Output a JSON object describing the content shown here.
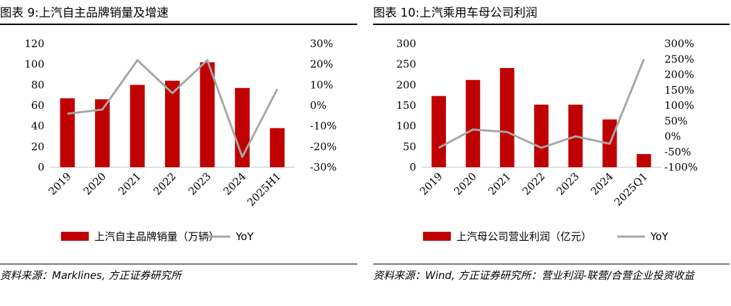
{
  "panels": [
    {
      "title": "图表 9:上汽自主品牌销量及增速",
      "source": "资料来源：Marklines, 方正证券研究所"
    },
    {
      "title": "图表 10:上汽乘用车母公司利润",
      "source": "资料来源：Wind, 方正证券研究所：营业利润-联营/合营企业投资收益"
    }
  ],
  "chart_data": [
    {
      "type": "bar",
      "categories": [
        "2019",
        "2020",
        "2021",
        "2022",
        "2023",
        "2024",
        "2025H1"
      ],
      "series": [
        {
          "name": "上汽自主品牌销量（万辆）",
          "type": "bar",
          "axis": "left",
          "color": "#c00000",
          "values": [
            67,
            66,
            80,
            84,
            102,
            77,
            38
          ]
        },
        {
          "name": "YoY",
          "type": "line",
          "axis": "right",
          "color": "#a6a6a6",
          "values": [
            -4,
            -2,
            22,
            6,
            22,
            -25,
            8
          ]
        }
      ],
      "ylim": [
        0,
        120
      ],
      "yticks": [
        "0",
        "20",
        "40",
        "60",
        "80",
        "100",
        "120"
      ],
      "y2lim": [
        -30,
        30
      ],
      "y2ticks": [
        "-30%",
        "-20%",
        "-10%",
        "0%",
        "10%",
        "20%",
        "30%"
      ],
      "legend_position": "bottom"
    },
    {
      "type": "bar",
      "categories": [
        "2019",
        "2020",
        "2021",
        "2022",
        "2023",
        "2024",
        "2025Q1"
      ],
      "series": [
        {
          "name": "上汽母公司营业利润（亿元）",
          "type": "bar",
          "axis": "left",
          "color": "#c00000",
          "values": [
            173,
            212,
            241,
            152,
            152,
            116,
            32
          ]
        },
        {
          "name": "YoY",
          "type": "line",
          "axis": "right",
          "color": "#a6a6a6",
          "values": [
            -37,
            22,
            14,
            -37,
            0,
            -24,
            250
          ]
        }
      ],
      "ylim": [
        0,
        300
      ],
      "yticks": [
        "0",
        "50",
        "100",
        "150",
        "200",
        "250",
        "300"
      ],
      "y2lim": [
        -100,
        300
      ],
      "y2ticks": [
        "-100%",
        "-50%",
        "0%",
        "50%",
        "100%",
        "150%",
        "200%",
        "250%",
        "300%"
      ],
      "legend_position": "bottom"
    }
  ]
}
